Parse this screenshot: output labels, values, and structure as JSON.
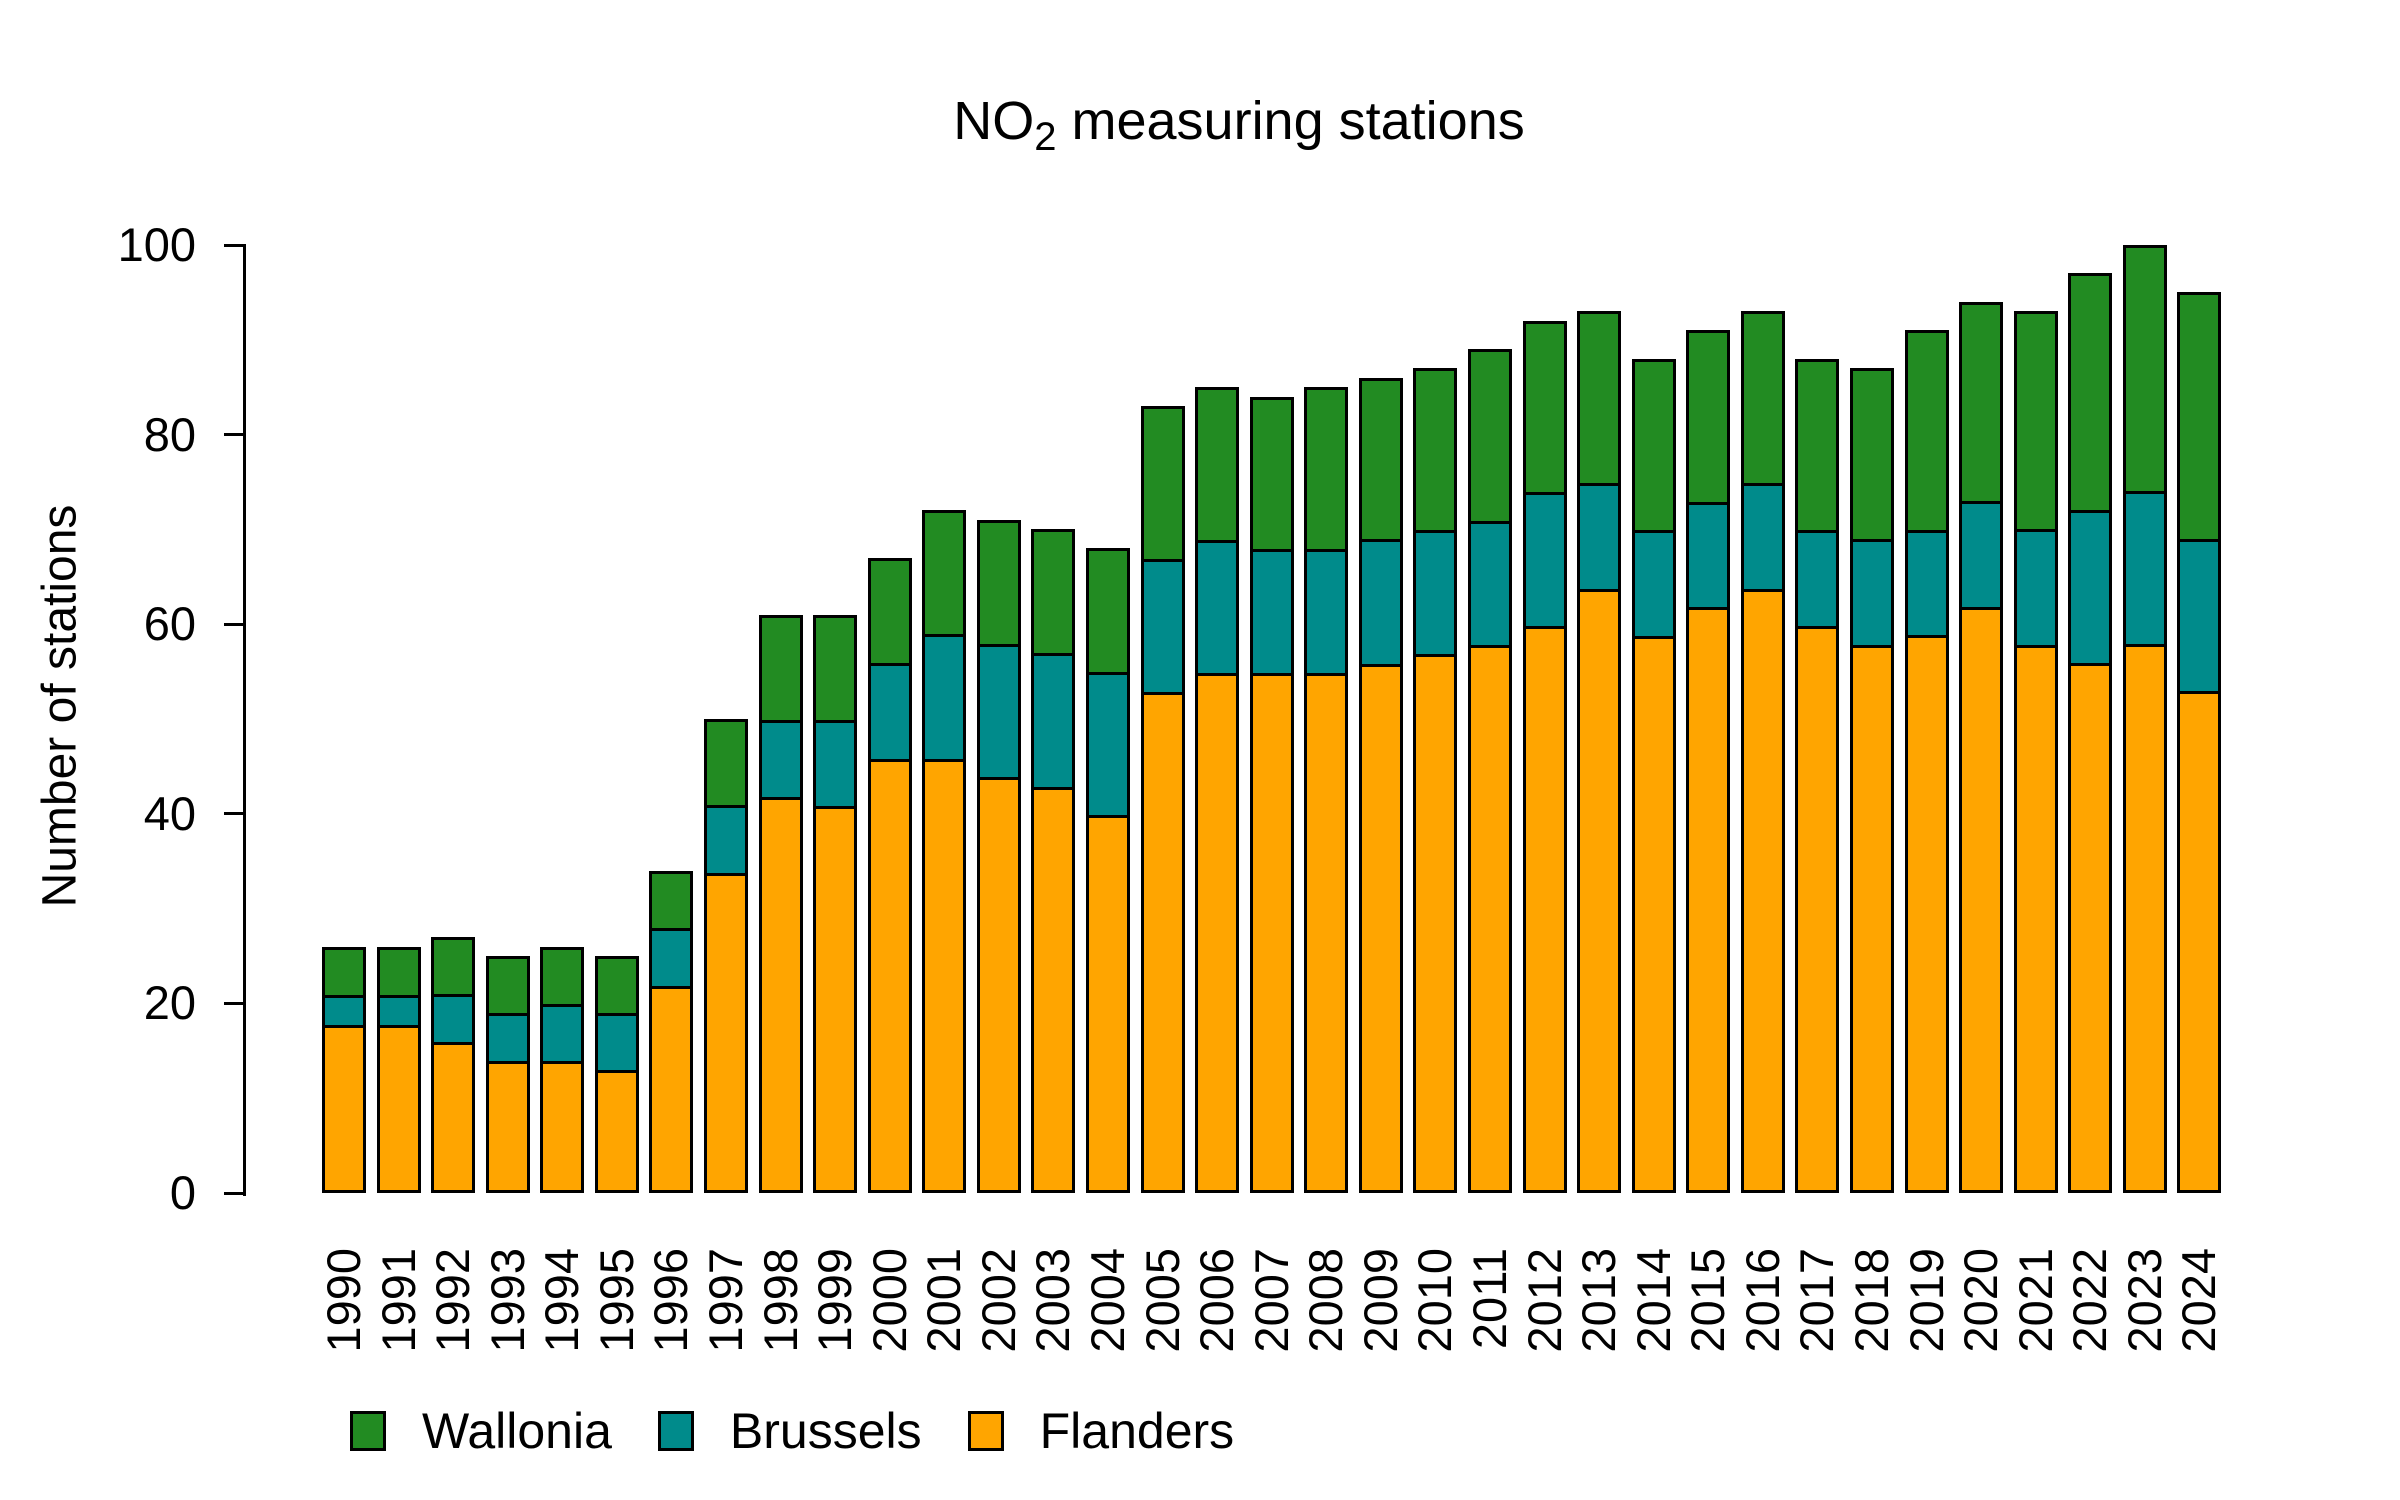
{
  "title": {
    "prefix": "NO",
    "subscript": "2",
    "suffix": " measuring stations"
  },
  "y_axis": {
    "label": "Number of stations",
    "ticks": [
      0,
      20,
      40,
      60,
      80,
      100
    ]
  },
  "legend": [
    {
      "label": "Wallonia",
      "color": "#228B22"
    },
    {
      "label": "Brussels",
      "color": "#008B8B"
    },
    {
      "label": "Flanders",
      "color": "#FFA500"
    }
  ],
  "chart_data": {
    "type": "bar",
    "stacked": true,
    "title": "NO2 measuring stations",
    "xlabel": "",
    "ylabel": "Number of stations",
    "ylim": [
      0,
      100
    ],
    "grid": false,
    "legend_position": "bottom-left",
    "bar_border_color": "#000000",
    "categories": [
      "1990",
      "1991",
      "1992",
      "1993",
      "1994",
      "1995",
      "1996",
      "1997",
      "1998",
      "1999",
      "2000",
      "2001",
      "2002",
      "2003",
      "2004",
      "2005",
      "2006",
      "2007",
      "2008",
      "2009",
      "2010",
      "2011",
      "2012",
      "2013",
      "2014",
      "2015",
      "2016",
      "2017",
      "2018",
      "2019",
      "2020",
      "2021",
      "2022",
      "2023",
      "2024"
    ],
    "series": [
      {
        "name": "Flanders",
        "color": "#FFA500",
        "values": [
          18,
          18,
          16,
          14,
          14,
          13,
          22,
          34,
          42,
          41,
          46,
          46,
          44,
          43,
          40,
          53,
          55,
          55,
          55,
          56,
          57,
          58,
          60,
          64,
          59,
          62,
          64,
          60,
          58,
          59,
          62,
          58,
          56,
          58,
          53
        ]
      },
      {
        "name": "Brussels",
        "color": "#008B8B",
        "values": [
          3,
          3,
          5,
          5,
          6,
          6,
          6,
          7,
          8,
          9,
          10,
          13,
          14,
          14,
          15,
          14,
          14,
          13,
          13,
          13,
          13,
          13,
          14,
          11,
          11,
          11,
          11,
          10,
          11,
          11,
          11,
          12,
          16,
          16,
          16
        ]
      },
      {
        "name": "Wallonia",
        "color": "#228B22",
        "values": [
          5,
          5,
          6,
          6,
          6,
          6,
          6,
          9,
          11,
          11,
          11,
          13,
          13,
          13,
          13,
          16,
          16,
          16,
          17,
          17,
          17,
          18,
          18,
          18,
          18,
          18,
          18,
          18,
          18,
          21,
          21,
          23,
          25,
          26,
          26
        ]
      }
    ],
    "totals": [
      26,
      26,
      27,
      25,
      26,
      25,
      34,
      50,
      61,
      61,
      67,
      72,
      71,
      70,
      68,
      83,
      85,
      84,
      85,
      86,
      87,
      89,
      92,
      93,
      88,
      91,
      93,
      88,
      87,
      91,
      94,
      93,
      97,
      100,
      95
    ]
  }
}
